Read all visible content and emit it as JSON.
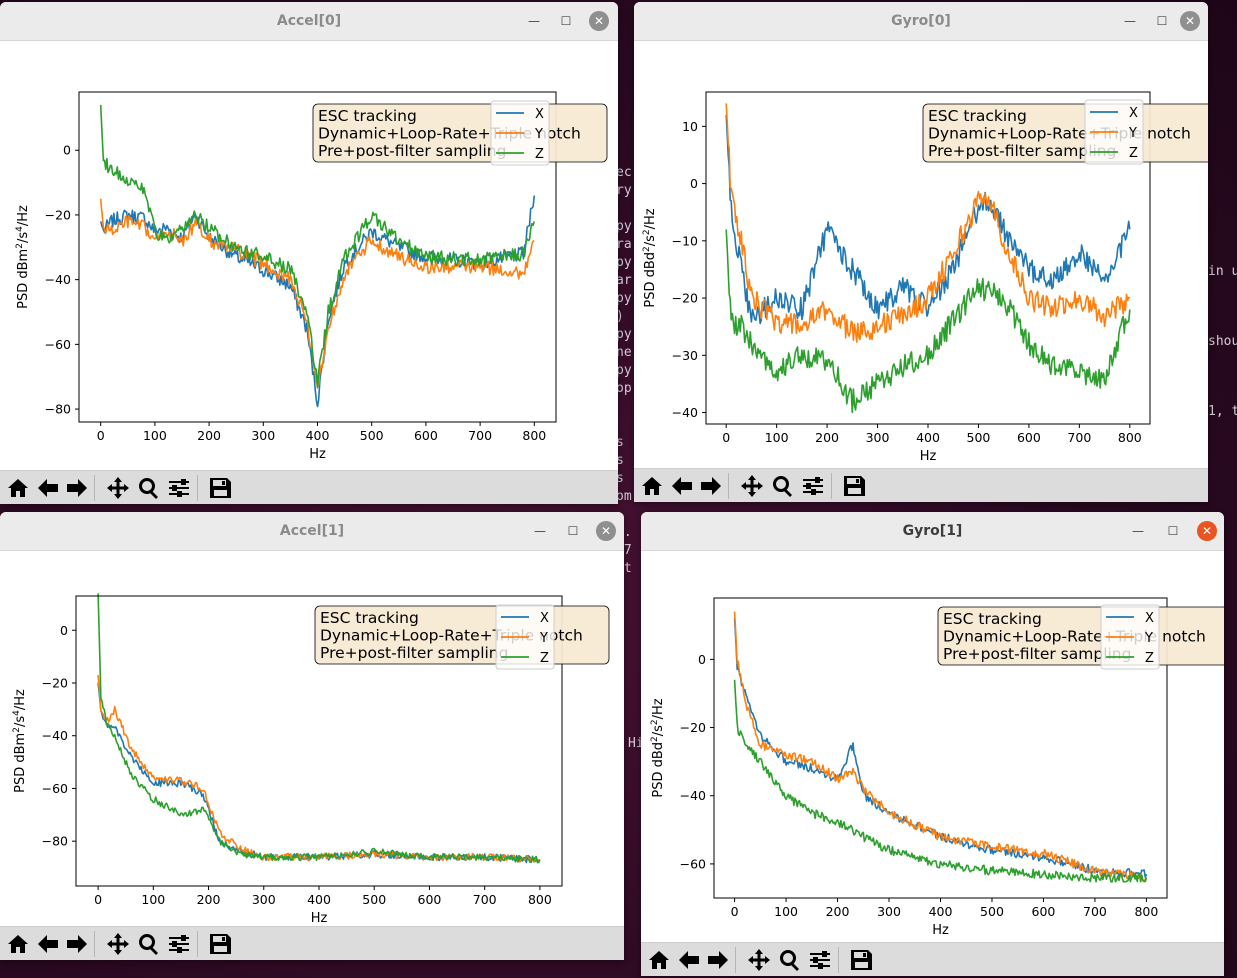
{
  "terminal": {
    "col1": [
      "ec",
      "ry",
      "",
      "py",
      "ra",
      "py",
      "ar",
      "py",
      ")",
      "py",
      "ne",
      "py",
      "op",
      "",
      "",
      "s",
      "s",
      "s",
      "om",
      "",
      "..",
      "77",
      "at"
    ],
    "col2": [
      "in u",
      "",
      "shou",
      "",
      "1, t"
    ],
    "hi": "Hi"
  },
  "windows": [
    {
      "id": "accel0",
      "title": "Accel[0]",
      "active": false,
      "ylabel": "PSD dBm²/s⁴/Hz",
      "ylabel_base": "PSD dBm",
      "ylabel_exp1": "2",
      "ylabel_mid": "/s",
      "ylabel_exp2": "4",
      "ylabel_end": "/Hz",
      "xlabel": "Hz",
      "annotation": [
        "ESC tracking",
        "Dynamic+Loop-Rate+Triple notch",
        "Pre+post-filter sampling"
      ],
      "legend": [
        "X",
        "Y",
        "Z"
      ],
      "colors": [
        "#1f77b4",
        "#ff7f0e",
        "#2ca02c"
      ]
    },
    {
      "id": "gyro0",
      "title": "Gyro[0]",
      "active": false,
      "ylabel_base": "PSD dBd",
      "ylabel_exp1": "2",
      "ylabel_mid": "/s",
      "ylabel_exp2": "2",
      "ylabel_end": "/Hz",
      "xlabel": "Hz",
      "annotation": [
        "ESC tracking",
        "Dynamic+Loop-Rate+Triple notch",
        "Pre+post-filter sampling"
      ],
      "legend": [
        "X",
        "Y",
        "Z"
      ]
    },
    {
      "id": "accel1",
      "title": "Accel[1]",
      "active": false,
      "ylabel_base": "PSD dBm",
      "ylabel_exp1": "2",
      "ylabel_mid": "/s",
      "ylabel_exp2": "4",
      "ylabel_end": "/Hz",
      "xlabel": "Hz",
      "annotation": [
        "ESC tracking",
        "Dynamic+Loop-Rate+Triple notch",
        "Pre+post-filter sampling"
      ],
      "legend": [
        "X",
        "Y",
        "Z"
      ]
    },
    {
      "id": "gyro1",
      "title": "Gyro[1]",
      "active": true,
      "ylabel_base": "PSD dBd",
      "ylabel_exp1": "2",
      "ylabel_mid": "/s",
      "ylabel_exp2": "2",
      "ylabel_end": "/Hz",
      "xlabel": "Hz",
      "annotation": [
        "ESC tracking",
        "Dynamic+Loop-Rate+Triple notch",
        "Pre+post-filter sampling"
      ],
      "legend": [
        "X",
        "Y",
        "Z"
      ]
    }
  ],
  "toolbar_icons": [
    "home-icon",
    "back-arrow-icon",
    "forward-arrow-icon",
    "pan-icon",
    "zoom-icon",
    "configure-subplots-icon",
    "save-icon"
  ],
  "chart_data": [
    {
      "type": "line",
      "window": "Accel[0]",
      "xlabel": "Hz",
      "ylabel": "PSD dBm²/s⁴/Hz",
      "xlim": [
        -40,
        840
      ],
      "ylim": [
        -84,
        18
      ],
      "xticks": [
        0,
        100,
        200,
        300,
        400,
        500,
        600,
        700,
        800
      ],
      "yticks": [
        -80,
        -60,
        -40,
        -20,
        0
      ],
      "legend_position": "top-right",
      "x": [
        0,
        5,
        20,
        50,
        80,
        100,
        120,
        150,
        175,
        200,
        250,
        300,
        350,
        380,
        400,
        420,
        450,
        500,
        550,
        600,
        700,
        780,
        800
      ],
      "series": [
        {
          "name": "X",
          "values": [
            -22,
            -25,
            -22,
            -20,
            -21,
            -25,
            -24,
            -27,
            -20,
            -27,
            -33,
            -37,
            -42,
            -55,
            -78,
            -52,
            -35,
            -25,
            -30,
            -33,
            -35,
            -32,
            -14
          ]
        },
        {
          "name": "Y",
          "values": [
            -15,
            -24,
            -25,
            -22,
            -24,
            -28,
            -25,
            -28,
            -23,
            -28,
            -31,
            -35,
            -40,
            -52,
            -74,
            -55,
            -38,
            -28,
            -33,
            -36,
            -36,
            -38,
            -28
          ]
        },
        {
          "name": "Z",
          "values": [
            14,
            -3,
            -6,
            -9,
            -12,
            -25,
            -28,
            -25,
            -20,
            -24,
            -30,
            -33,
            -37,
            -50,
            -72,
            -50,
            -33,
            -20,
            -28,
            -33,
            -34,
            -32,
            -22
          ]
        }
      ]
    },
    {
      "type": "line",
      "window": "Gyro[0]",
      "xlabel": "Hz",
      "ylabel": "PSD dBd²/s²/Hz",
      "xlim": [
        -40,
        840
      ],
      "ylim": [
        -42,
        16
      ],
      "xticks": [
        0,
        100,
        200,
        300,
        400,
        500,
        600,
        700,
        800
      ],
      "yticks": [
        -40,
        -30,
        -20,
        -10,
        0,
        10
      ],
      "legend_position": "top-right",
      "x": [
        0,
        10,
        30,
        50,
        100,
        150,
        200,
        250,
        300,
        350,
        400,
        450,
        500,
        520,
        550,
        600,
        650,
        700,
        750,
        800
      ],
      "series": [
        {
          "name": "X",
          "values": [
            12,
            -5,
            -15,
            -24,
            -20,
            -22,
            -8,
            -15,
            -22,
            -18,
            -22,
            -15,
            -4,
            -3,
            -8,
            -15,
            -17,
            -12,
            -17,
            -8
          ]
        },
        {
          "name": "Y",
          "values": [
            14,
            -2,
            -10,
            -20,
            -24,
            -25,
            -22,
            -26,
            -25,
            -23,
            -20,
            -12,
            -3,
            -2,
            -10,
            -20,
            -22,
            -20,
            -23,
            -20
          ]
        },
        {
          "name": "Z",
          "values": [
            -8,
            -24,
            -25,
            -28,
            -33,
            -30,
            -31,
            -38,
            -35,
            -32,
            -30,
            -24,
            -18,
            -19,
            -20,
            -28,
            -32,
            -33,
            -34,
            -22
          ]
        }
      ]
    },
    {
      "type": "line",
      "window": "Accel[1]",
      "xlabel": "Hz",
      "ylabel": "PSD dBm²/s⁴/Hz",
      "xlim": [
        -40,
        840
      ],
      "ylim": [
        -97,
        13
      ],
      "xticks": [
        0,
        100,
        200,
        300,
        400,
        500,
        600,
        700,
        800
      ],
      "yticks": [
        -80,
        -60,
        -40,
        -20,
        0
      ],
      "legend_position": "top-right",
      "x": [
        0,
        5,
        15,
        30,
        60,
        100,
        150,
        190,
        220,
        260,
        300,
        400,
        500,
        600,
        700,
        800
      ],
      "series": [
        {
          "name": "X",
          "values": [
            -20,
            -30,
            -36,
            -37,
            -48,
            -58,
            -58,
            -62,
            -80,
            -84,
            -86,
            -86,
            -85,
            -86,
            -86,
            -87
          ]
        },
        {
          "name": "Y",
          "values": [
            -17,
            -30,
            -35,
            -30,
            -45,
            -56,
            -57,
            -60,
            -77,
            -83,
            -86,
            -86,
            -85,
            -86,
            -86,
            -87
          ]
        },
        {
          "name": "Z",
          "values": [
            14,
            -25,
            -35,
            -40,
            -55,
            -64,
            -70,
            -68,
            -80,
            -85,
            -86,
            -86,
            -84,
            -86,
            -86,
            -87
          ]
        }
      ]
    },
    {
      "type": "line",
      "window": "Gyro[1]",
      "xlabel": "Hz",
      "ylabel": "PSD dBd²/s²/Hz",
      "xlim": [
        -40,
        840
      ],
      "ylim": [
        -70,
        18
      ],
      "xticks": [
        0,
        100,
        200,
        300,
        400,
        500,
        600,
        700,
        800
      ],
      "yticks": [
        -60,
        -40,
        -20,
        0
      ],
      "legend_position": "top-right",
      "x": [
        0,
        5,
        20,
        50,
        100,
        150,
        200,
        230,
        250,
        300,
        400,
        500,
        600,
        700,
        800
      ],
      "series": [
        {
          "name": "X",
          "values": [
            12,
            -2,
            -10,
            -22,
            -30,
            -32,
            -35,
            -25,
            -40,
            -45,
            -52,
            -56,
            -58,
            -62,
            -63
          ]
        },
        {
          "name": "Y",
          "values": [
            14,
            0,
            -12,
            -25,
            -28,
            -30,
            -35,
            -33,
            -38,
            -45,
            -52,
            -55,
            -57,
            -62,
            -64
          ]
        },
        {
          "name": "Z",
          "values": [
            -6,
            -20,
            -25,
            -30,
            -40,
            -45,
            -48,
            -50,
            -52,
            -56,
            -60,
            -62,
            -63,
            -64,
            -64
          ]
        }
      ]
    }
  ]
}
